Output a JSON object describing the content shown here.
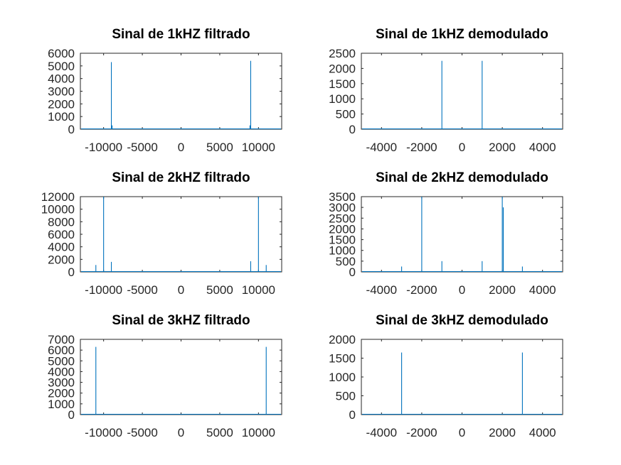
{
  "colors": {
    "series": "#0072BD",
    "axis": "#262626",
    "background": "#ffffff"
  },
  "chart_data": [
    {
      "type": "bar",
      "title": "Sinal de 1kHZ filtrado",
      "xlim": [
        -13000,
        13000
      ],
      "ylim": [
        0,
        6000
      ],
      "xticks": [
        -10000,
        -5000,
        0,
        5000,
        10000
      ],
      "xtick_labels": [
        "-10000",
        "-5000",
        "0",
        "5000",
        "10000"
      ],
      "yticks": [
        0,
        1000,
        2000,
        3000,
        4000,
        5000,
        6000
      ],
      "ytick_labels": [
        "0",
        "1000",
        "2000",
        "3000",
        "4000",
        "5000",
        "6000"
      ],
      "grid": false,
      "x": [
        -9000,
        -8900,
        8900,
        9000
      ],
      "values": [
        5300,
        300,
        300,
        5400
      ]
    },
    {
      "type": "bar",
      "title": "Sinal de 1kHZ demodulado",
      "xlim": [
        -5000,
        5000
      ],
      "ylim": [
        0,
        2500
      ],
      "xticks": [
        -4000,
        -2000,
        0,
        2000,
        4000
      ],
      "xtick_labels": [
        "-4000",
        "-2000",
        "0",
        "2000",
        "4000"
      ],
      "yticks": [
        0,
        500,
        1000,
        1500,
        2000,
        2500
      ],
      "ytick_labels": [
        "0",
        "500",
        "1000",
        "1500",
        "2000",
        "2500"
      ],
      "grid": false,
      "x": [
        -1000,
        1000
      ],
      "values": [
        2250,
        2250
      ]
    },
    {
      "type": "bar",
      "title": "Sinal de 2kHZ filtrado",
      "xlim": [
        -13000,
        13000
      ],
      "ylim": [
        0,
        12000
      ],
      "xticks": [
        -10000,
        -5000,
        0,
        5000,
        10000
      ],
      "xtick_labels": [
        "-10000",
        "-5000",
        "0",
        "5000",
        "10000"
      ],
      "yticks": [
        0,
        2000,
        4000,
        6000,
        8000,
        10000,
        12000
      ],
      "ytick_labels": [
        "0",
        "2000",
        "4000",
        "6000",
        "8000",
        "10000",
        "12000"
      ],
      "grid": false,
      "x": [
        -11000,
        -10000,
        -9000,
        9000,
        10000,
        11000
      ],
      "values": [
        1100,
        12000,
        1600,
        1700,
        12000,
        1100
      ]
    },
    {
      "type": "bar",
      "title": "Sinal de 2kHZ demodulado",
      "xlim": [
        -5000,
        5000
      ],
      "ylim": [
        0,
        3500
      ],
      "xticks": [
        -4000,
        -2000,
        0,
        2000,
        4000
      ],
      "xtick_labels": [
        "-4000",
        "-2000",
        "0",
        "2000",
        "4000"
      ],
      "yticks": [
        0,
        500,
        1000,
        1500,
        2000,
        2500,
        3000,
        3500
      ],
      "ytick_labels": [
        "0",
        "500",
        "1000",
        "1500",
        "2000",
        "2500",
        "3000",
        "3500"
      ],
      "grid": false,
      "x": [
        -3000,
        -2000,
        -1000,
        1000,
        2000,
        2050,
        3000
      ],
      "values": [
        250,
        3500,
        500,
        500,
        3500,
        3000,
        250
      ]
    },
    {
      "type": "bar",
      "title": "Sinal de 3kHZ filtrado",
      "xlim": [
        -13000,
        13000
      ],
      "ylim": [
        0,
        7000
      ],
      "xticks": [
        -10000,
        -5000,
        0,
        5000,
        10000
      ],
      "xtick_labels": [
        "-10000",
        "-5000",
        "0",
        "5000",
        "10000"
      ],
      "yticks": [
        0,
        1000,
        2000,
        3000,
        4000,
        5000,
        6000,
        7000
      ],
      "ytick_labels": [
        "0",
        "1000",
        "2000",
        "3000",
        "4000",
        "5000",
        "6000",
        "7000"
      ],
      "grid": false,
      "x": [
        -11000,
        11000
      ],
      "values": [
        6300,
        6300
      ]
    },
    {
      "type": "bar",
      "title": "Sinal de 3kHZ demodulado",
      "xlim": [
        -5000,
        5000
      ],
      "ylim": [
        0,
        2000
      ],
      "xticks": [
        -4000,
        -2000,
        0,
        2000,
        4000
      ],
      "xtick_labels": [
        "-4000",
        "-2000",
        "0",
        "2000",
        "4000"
      ],
      "yticks": [
        0,
        500,
        1000,
        1500,
        2000
      ],
      "ytick_labels": [
        "0",
        "500",
        "1000",
        "1500",
        "2000"
      ],
      "grid": false,
      "x": [
        -3000,
        3000
      ],
      "values": [
        1650,
        1650
      ]
    }
  ]
}
